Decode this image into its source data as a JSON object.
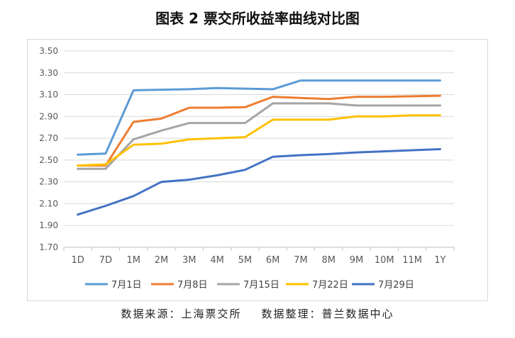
{
  "chart_data": {
    "type": "line",
    "title": "图表 2 票交所收益率曲线对比图",
    "categories": [
      "1D",
      "7D",
      "1M",
      "2M",
      "3M",
      "4M",
      "5M",
      "6M",
      "7M",
      "8M",
      "9M",
      "10M",
      "11M",
      "1Y"
    ],
    "yticks": [
      "1.70",
      "1.90",
      "2.10",
      "2.30",
      "2.50",
      "2.70",
      "2.90",
      "3.10",
      "3.30",
      "3.50"
    ],
    "ylim": [
      1.7,
      3.5
    ],
    "grid": true,
    "legend_position": "bottom",
    "series": [
      {
        "name": "7月1日",
        "color": "#5b9bd5",
        "values": [
          2.55,
          2.56,
          3.14,
          3.145,
          3.15,
          3.16,
          3.155,
          3.15,
          3.23,
          3.23,
          3.23,
          3.23,
          3.23,
          3.23
        ]
      },
      {
        "name": "7月8日",
        "color": "#ed7d31",
        "values": [
          2.45,
          2.45,
          2.85,
          2.88,
          2.98,
          2.98,
          2.985,
          3.08,
          3.07,
          3.06,
          3.08,
          3.08,
          3.085,
          3.09
        ]
      },
      {
        "name": "7月15日",
        "color": "#a5a5a5",
        "values": [
          2.42,
          2.42,
          2.69,
          2.77,
          2.84,
          2.84,
          2.84,
          3.02,
          3.02,
          3.02,
          3.0,
          3.0,
          3.0,
          3.0
        ]
      },
      {
        "name": "7月22日",
        "color": "#ffc000",
        "values": [
          2.45,
          2.46,
          2.64,
          2.65,
          2.69,
          2.7,
          2.71,
          2.87,
          2.87,
          2.87,
          2.9,
          2.9,
          2.91,
          2.91
        ]
      },
      {
        "name": "7月29日",
        "color": "#4472c4",
        "values": [
          2.0,
          2.08,
          2.17,
          2.3,
          2.32,
          2.36,
          2.41,
          2.53,
          2.545,
          2.555,
          2.57,
          2.58,
          2.59,
          2.6
        ]
      }
    ]
  },
  "footer": {
    "source": "数据来源：上海票交所",
    "compiler": "数据整理：普兰数据中心"
  }
}
